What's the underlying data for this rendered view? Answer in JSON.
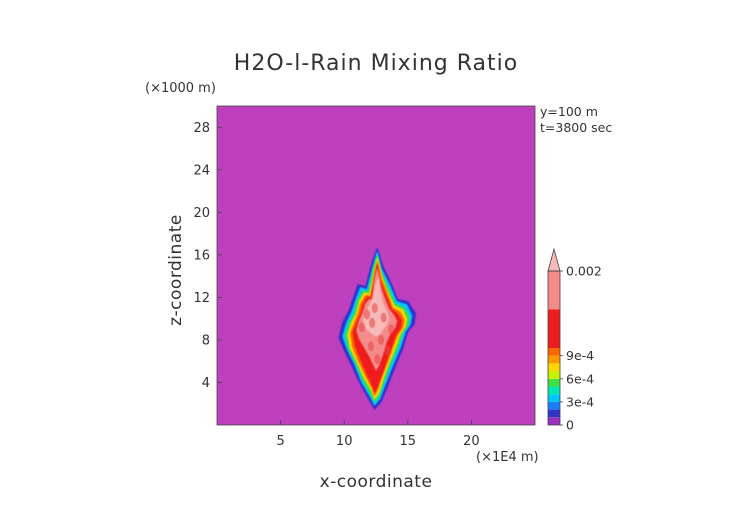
{
  "chart_data": {
    "type": "heatmap",
    "title": "H2O-l-Rain Mixing Ratio",
    "xlabel": "x-coordinate",
    "ylabel": "z-coordinate",
    "x_unit": "(×1E4 m)",
    "y_unit": "(×1000 m)",
    "annotations": [
      "y=100 m",
      "t=3800 sec"
    ],
    "xlim": [
      0,
      25
    ],
    "ylim": [
      0,
      30
    ],
    "x_ticks": [
      5,
      10,
      15,
      20
    ],
    "y_ticks": [
      4,
      8,
      12,
      16,
      20,
      24,
      28
    ],
    "x_tick_labels": [
      "5",
      "10",
      "15",
      "20"
    ],
    "y_tick_labels": [
      "4",
      "8",
      "12",
      "16",
      "20",
      "24",
      "28"
    ],
    "colorbar": {
      "min": 0,
      "max": 0.002,
      "extend": "max",
      "tick_values": [
        0,
        0.0003,
        0.0006,
        0.0009,
        0.002
      ],
      "tick_labels": [
        "0",
        "3e-4",
        "6e-4",
        "9e-4",
        "0.002"
      ],
      "bands": [
        {
          "from": 0,
          "to": 0.0001,
          "color": "#9b2fc0"
        },
        {
          "from": 0.0001,
          "to": 0.0002,
          "color": "#3333cc"
        },
        {
          "from": 0.0002,
          "to": 0.0003,
          "color": "#1e7dff"
        },
        {
          "from": 0.0003,
          "to": 0.0004,
          "color": "#00c8ff"
        },
        {
          "from": 0.0004,
          "to": 0.0005,
          "color": "#00e8b0"
        },
        {
          "from": 0.0005,
          "to": 0.0006,
          "color": "#40e040"
        },
        {
          "from": 0.0006,
          "to": 0.0007,
          "color": "#c8f000"
        },
        {
          "from": 0.0007,
          "to": 0.0008,
          "color": "#ffd700"
        },
        {
          "from": 0.0008,
          "to": 0.0009,
          "color": "#ff9900"
        },
        {
          "from": 0.0009,
          "to": 0.001,
          "color": "#ff6600"
        },
        {
          "from": 0.001,
          "to": 0.0015,
          "color": "#ee1c1c"
        },
        {
          "from": 0.0015,
          "to": 0.002,
          "color": "#f58a8a"
        }
      ],
      "over_color": "#f7b8b8"
    },
    "background_color": "#c040c0",
    "rain_field": {
      "x_range": [
        9.5,
        16
      ],
      "z_range": [
        1,
        16.5
      ],
      "peak_value": 0.0025
    }
  }
}
